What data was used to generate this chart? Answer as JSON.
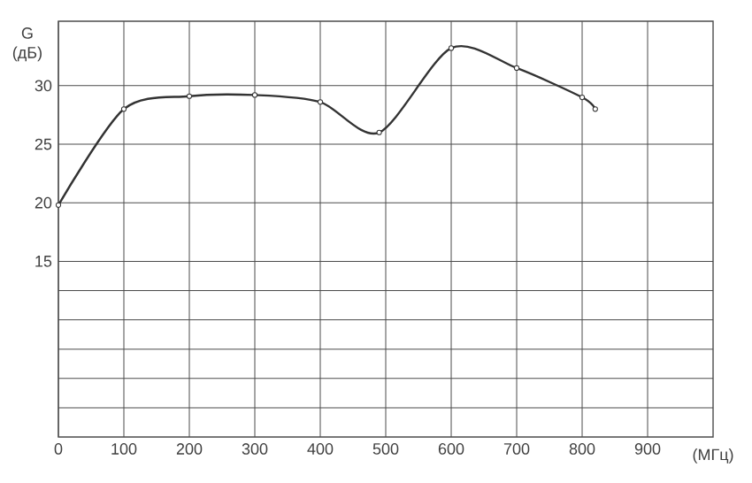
{
  "chart_data": {
    "type": "line",
    "xlabel": "(МГц)",
    "ylabel": "G (дБ)",
    "x": [
      0,
      100,
      200,
      300,
      400,
      490,
      600,
      700,
      800,
      820
    ],
    "series": [
      {
        "color": "#333333",
        "values": [
          19.8,
          28,
          29.1,
          29.2,
          28.6,
          26,
          33.2,
          31.5,
          29,
          28
        ]
      }
    ],
    "xlim": [
      0,
      1000
    ],
    "xticks": [
      0,
      100,
      200,
      300,
      400,
      500,
      600,
      700,
      800,
      900
    ],
    "ylim": [
      0,
      35.5
    ],
    "yticks": [
      {
        "value": 2.5,
        "label": null
      },
      {
        "value": 5,
        "label": null
      },
      {
        "value": 7.5,
        "label": null
      },
      {
        "value": 10,
        "label": null
      },
      {
        "value": 12.5,
        "label": null
      },
      15,
      20,
      25,
      30
    ],
    "grid": true,
    "marker": "circle",
    "line_style": "solid"
  }
}
